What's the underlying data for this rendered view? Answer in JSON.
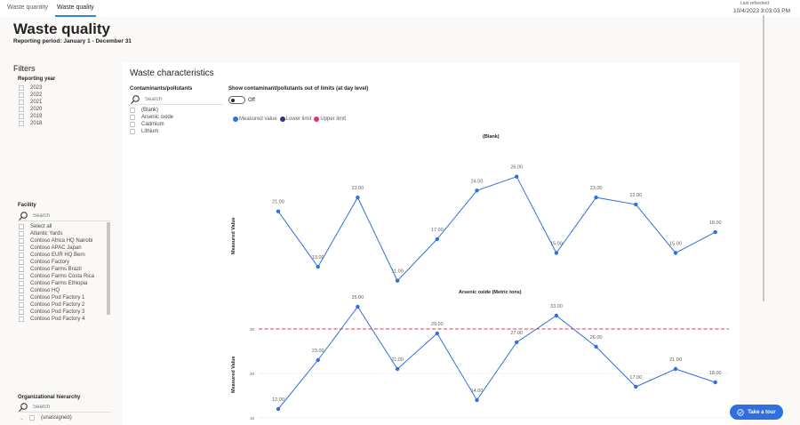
{
  "tabs": [
    {
      "label": "Waste quantity",
      "active": false
    },
    {
      "label": "Waste quality",
      "active": true
    }
  ],
  "refresh": {
    "label": "Last refreshed",
    "time": "10/4/2023 3:03:03 PM"
  },
  "page": {
    "title": "Waste quality",
    "subtitle": "Reporting period: January 1 - December 31"
  },
  "filters": {
    "title": "Filters",
    "reporting_year": {
      "label": "Reporting year",
      "options": [
        "2023",
        "2022",
        "2021",
        "2020",
        "2019",
        "2018"
      ]
    },
    "facility": {
      "label": "Facility",
      "search_placeholder": "Search",
      "options": [
        "Select all",
        "Atlantic Yards",
        "Contoso Africa HQ Nairobi",
        "Contoso APAC Japan",
        "Contoso EUR HQ Bern",
        "Contoso Factory",
        "Contoso Farms Brazil",
        "Contoso Farms Costa Rica",
        "Contoso Farms Ethiopia",
        "Contoso HQ",
        "Contoso Pod Factory 1",
        "Contoso Pod Factory 2",
        "Contoso Pod Factory 3",
        "Contoso Pod Factory 4"
      ]
    },
    "org_hierarchy": {
      "label": "Organizational hierarchy",
      "search_placeholder": "Search",
      "options": [
        "(unassigned)"
      ]
    }
  },
  "card": {
    "title": "Waste characteristics",
    "contaminants": {
      "label": "Contaminants/pollutants",
      "search_placeholder": "Search",
      "options": [
        "(Blank)",
        "Arsenic oxide",
        "Cadmium",
        "Lithium"
      ]
    },
    "toggle": {
      "label": "Show contaminant/pollutants out of limits (at day level)",
      "state": "Off"
    },
    "legend": [
      {
        "label": "Measured value",
        "color": "#2f6fde"
      },
      {
        "label": "Lower limit",
        "color": "#30358a"
      },
      {
        "label": "Upper limit",
        "color": "#e0356b"
      }
    ]
  },
  "chart_data": [
    {
      "type": "line",
      "title": "(Blank)",
      "ylabel": "Measured Value",
      "xlabel": "",
      "series": [
        {
          "name": "Measured value",
          "color": "#2f6fde",
          "values": [
            21,
            13,
            23,
            11,
            17,
            24,
            26,
            15,
            23,
            22,
            15,
            18
          ]
        }
      ],
      "data_labels": [
        "21.00",
        "13.00",
        "23.00",
        "11.00",
        "17.00",
        "24.00",
        "26.00",
        "15.00",
        "23.00",
        "22.00",
        "15.00",
        "18.00"
      ],
      "grid": false
    },
    {
      "type": "line",
      "title": "Arsenic oxide (Metric tons)",
      "ylabel": "Measured Value",
      "xlabel": "",
      "yticks": [
        "30",
        "20",
        "10"
      ],
      "ylim": [
        10,
        36
      ],
      "series": [
        {
          "name": "Measured value",
          "color": "#2f6fde",
          "values": [
            12,
            23,
            35,
            21,
            29,
            14,
            27,
            33,
            26,
            17,
            21,
            18
          ]
        },
        {
          "name": "Upper limit",
          "color": "#e0356b",
          "values": [
            30,
            30,
            30,
            30,
            30,
            30,
            30,
            30,
            30,
            30,
            30,
            30
          ]
        }
      ],
      "data_labels": [
        "12.00",
        "23.00",
        "35.00",
        "21.00",
        "29.00",
        "14.00",
        "27.00",
        "33.00",
        "26.00",
        "17.00",
        "21.00",
        "18.00"
      ],
      "grid": true
    }
  ],
  "tour_button": {
    "label": "Take a tour"
  }
}
